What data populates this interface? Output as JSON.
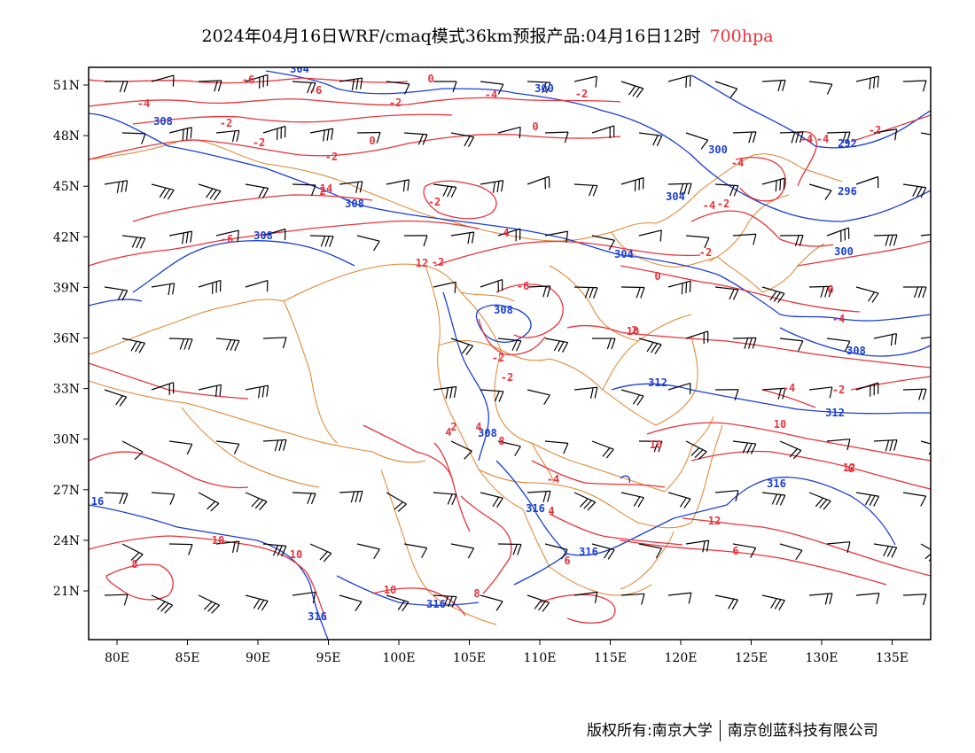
{
  "title": {
    "main": "2024年04月16日WRF/cmaq模式36km预报产品:04月16日12时",
    "level": "700hpa"
  },
  "axes": {
    "x_ticks": [
      "80E",
      "85E",
      "90E",
      "95E",
      "100E",
      "105E",
      "110E",
      "115E",
      "120E",
      "125E",
      "130E",
      "135E"
    ],
    "y_ticks": [
      "51N",
      "48N",
      "45N",
      "42N",
      "39N",
      "36N",
      "33N",
      "30N",
      "27N",
      "24N",
      "21N"
    ]
  },
  "contour_labels": {
    "height": [
      "304",
      "300",
      "308",
      "300",
      "292",
      "304",
      "296",
      "308",
      "308",
      "300",
      "308",
      "308",
      "304",
      "312",
      "312",
      "308",
      "316",
      "316",
      "316",
      "316",
      "316",
      "16"
    ],
    "temperature": [
      "-4",
      "-4",
      "-2",
      "-2",
      "-2",
      "0",
      "0",
      "-2",
      "-2",
      "-2",
      "-4",
      "0",
      "-6",
      "-6",
      "-4",
      "-4",
      "-2",
      "0",
      "-4",
      "-2",
      "-4",
      "-4",
      "-2",
      "-2",
      "-2",
      "-6",
      "-6",
      "4",
      "-2",
      "0",
      "-2",
      "2",
      "2",
      "-4",
      "2",
      "4",
      "4",
      "4",
      "6",
      "8",
      "10",
      "8",
      "10",
      "10",
      "10",
      "8",
      "6",
      "12",
      "12",
      "10",
      "14",
      "12",
      "10",
      "6"
    ]
  },
  "colors": {
    "height": "#1a3fd6",
    "temperature": "#e8333a",
    "border": "#e0822a",
    "wind": "#000000"
  },
  "footer": {
    "left": "版权所有:南京大学",
    "right": "南京创蓝科技有限公司"
  }
}
